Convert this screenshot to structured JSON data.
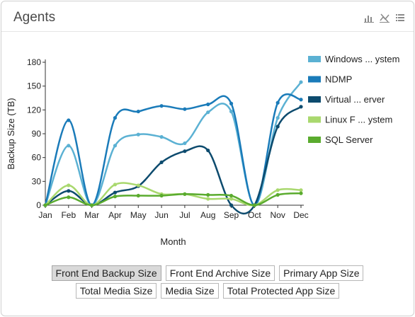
{
  "panel": {
    "title": "Agents",
    "icons": [
      "bar-chart-icon",
      "line-chart-off-icon",
      "list-icon"
    ]
  },
  "chart_data": {
    "type": "line",
    "xlabel": "Month",
    "ylabel": "Backup Size (TB)",
    "x": [
      "Jan",
      "Feb",
      "Mar",
      "Apr",
      "May",
      "Jun",
      "Jul",
      "Aug",
      "Sep",
      "Oct",
      "Nov",
      "Dec"
    ],
    "ylim": [
      0,
      180
    ],
    "yticks": [
      0,
      30,
      60,
      90,
      120,
      150,
      180
    ],
    "grid": false,
    "legend_position": "right",
    "series": [
      {
        "name": "Windows ... ystem",
        "color": "#5bb1d3",
        "values": [
          0,
          75,
          0,
          75,
          89,
          86,
          78,
          117,
          118,
          0,
          110,
          155
        ]
      },
      {
        "name": "NDMP",
        "color": "#1a7bb9",
        "values": [
          0,
          107,
          0,
          110,
          118,
          125,
          121,
          127,
          128,
          0,
          129,
          133
        ]
      },
      {
        "name": "Virtual ... erver",
        "color": "#0d4b6e",
        "values": [
          0,
          18,
          0,
          16,
          24,
          54,
          68,
          69,
          0,
          0,
          99,
          124
        ]
      },
      {
        "name": "Linux F ... ystem",
        "color": "#a9d86e",
        "values": [
          0,
          25,
          0,
          26,
          25,
          14,
          14,
          8,
          8,
          0,
          19,
          19
        ]
      },
      {
        "name": "SQL Server",
        "color": "#5aab2e",
        "values": [
          0,
          10,
          0,
          11,
          12,
          12,
          14,
          13,
          12,
          0,
          13,
          15
        ]
      }
    ]
  },
  "buttons": {
    "row1": [
      "Front End Backup Size",
      "Front End Archive Size",
      "Primary App Size"
    ],
    "row2": [
      "Total Media Size",
      "Media Size",
      "Total Protected App Size"
    ],
    "active": "Front End Backup Size"
  }
}
